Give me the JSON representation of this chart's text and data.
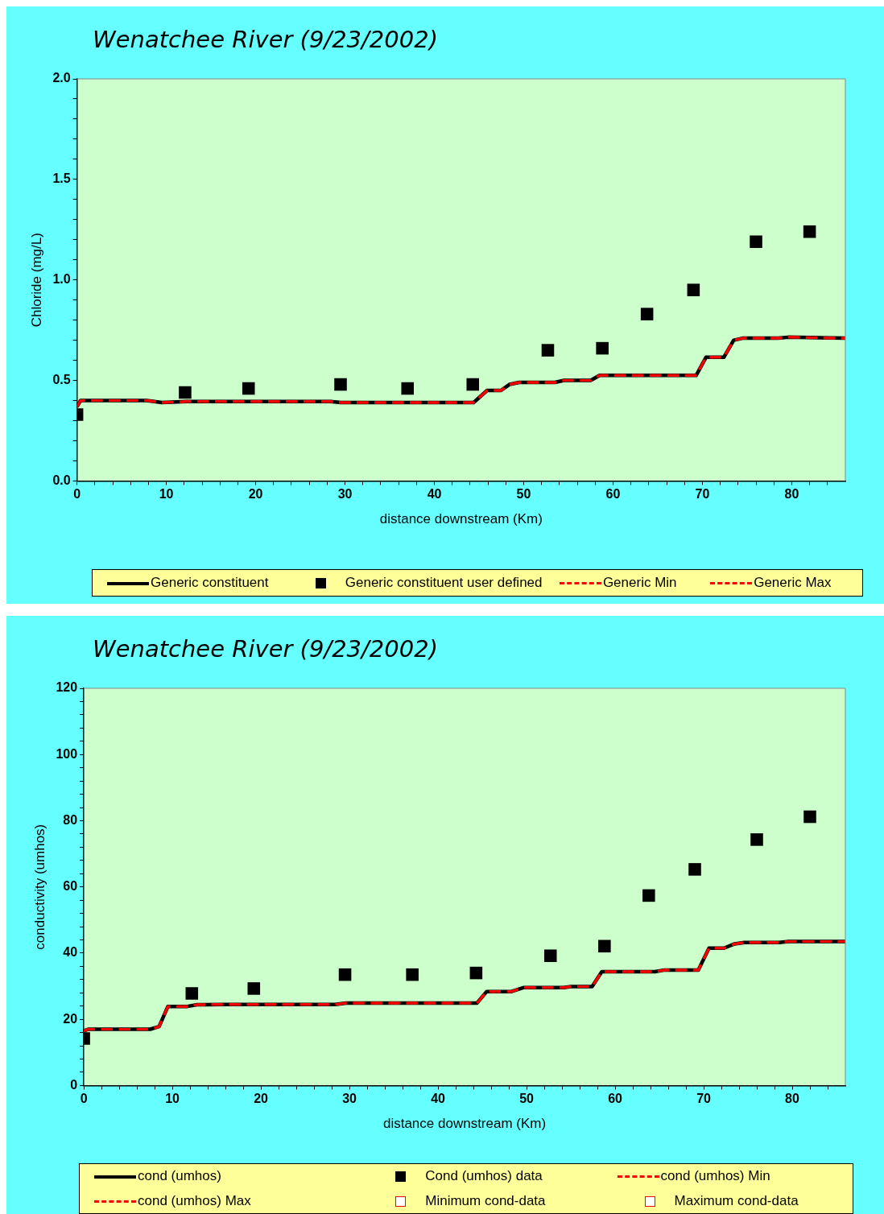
{
  "chart_data": [
    {
      "type": "line",
      "title": "Wenatchee River (9/23/2002)",
      "xlabel": "distance downstream (Km)",
      "ylabel": "Chloride (mg/L)",
      "xlim": [
        0,
        86
      ],
      "xticks": [
        0,
        {
          "value": 2,
          "label": null
        },
        {
          "value": 4,
          "label": null
        },
        {
          "value": 6,
          "label": null
        },
        {
          "value": 8,
          "label": null
        },
        10,
        {
          "value": 12,
          "label": null
        },
        {
          "value": 14,
          "label": null
        },
        {
          "value": 16,
          "label": null
        },
        {
          "value": 18,
          "label": null
        },
        20,
        {
          "value": 22,
          "label": null
        },
        {
          "value": 24,
          "label": null
        },
        {
          "value": 26,
          "label": null
        },
        {
          "value": 28,
          "label": null
        },
        30,
        {
          "value": 32,
          "label": null
        },
        {
          "value": 34,
          "label": null
        },
        {
          "value": 36,
          "label": null
        },
        {
          "value": 38,
          "label": null
        },
        40,
        {
          "value": 42,
          "label": null
        },
        {
          "value": 44,
          "label": null
        },
        {
          "value": 46,
          "label": null
        },
        {
          "value": 48,
          "label": null
        },
        50,
        {
          "value": 52,
          "label": null
        },
        {
          "value": 54,
          "label": null
        },
        {
          "value": 56,
          "label": null
        },
        {
          "value": 58,
          "label": null
        },
        60,
        {
          "value": 62,
          "label": null
        },
        {
          "value": 64,
          "label": null
        },
        {
          "value": 66,
          "label": null
        },
        {
          "value": 68,
          "label": null
        },
        70,
        {
          "value": 72,
          "label": null
        },
        {
          "value": 74,
          "label": null
        },
        {
          "value": 76,
          "label": null
        },
        {
          "value": 78,
          "label": null
        },
        80,
        {
          "value": 82,
          "label": null
        },
        {
          "value": 84,
          "label": null
        }
      ],
      "ylim": [
        0,
        2
      ],
      "yticks": [
        {
          "value": 0,
          "label": "0.0"
        },
        {
          "value": 0.1,
          "label": null
        },
        {
          "value": 0.2,
          "label": null
        },
        {
          "value": 0.3,
          "label": null
        },
        {
          "value": 0.4,
          "label": null
        },
        0.5,
        {
          "value": 0.6,
          "label": null
        },
        {
          "value": 0.7,
          "label": null
        },
        {
          "value": 0.8,
          "label": null
        },
        {
          "value": 0.9,
          "label": null
        },
        {
          "value": 1,
          "label": "1.0"
        },
        {
          "value": 1.1,
          "label": null
        },
        {
          "value": 1.2,
          "label": null
        },
        {
          "value": 1.3,
          "label": null
        },
        {
          "value": 1.4,
          "label": null
        },
        1.5,
        {
          "value": 1.6,
          "label": null
        },
        {
          "value": 1.7,
          "label": null
        },
        {
          "value": 1.8,
          "label": null
        },
        {
          "value": 1.9,
          "label": null
        },
        {
          "value": 2,
          "label": "2.0"
        }
      ],
      "grid": false,
      "legend": "bottom",
      "series": [
        {
          "name": "Generic constituent",
          "color": "#000000",
          "line_style": "solid",
          "marker": "none",
          "x": [
            0,
            0.4,
            7.8,
            9.5,
            12.3,
            28.4,
            29.5,
            44.4,
            45.9,
            47.45,
            48.4,
            49.5,
            53.5,
            54.5,
            57.5,
            58.5,
            69.3,
            70.4,
            72.4,
            73.5,
            74.5,
            78.5,
            79.6,
            86
          ],
          "values": [
            0.37,
            0.4,
            0.4,
            0.39,
            0.395,
            0.395,
            0.39,
            0.39,
            0.45,
            0.45,
            0.48,
            0.49,
            0.49,
            0.5,
            0.5,
            0.525,
            0.525,
            0.615,
            0.615,
            0.7,
            0.71,
            0.71,
            0.715,
            0.71
          ]
        },
        {
          "name": "Generic constituent user defined",
          "type": "scatter",
          "color": "#000000",
          "marker": "square",
          "x": [
            0,
            12.1,
            19.2,
            29.5,
            37,
            44.3,
            52.7,
            58.8,
            63.8,
            69,
            76,
            82
          ],
          "values": [
            0.33,
            0.44,
            0.46,
            0.48,
            0.46,
            0.48,
            0.65,
            0.66,
            0.83,
            0.95,
            1.19,
            1.24
          ]
        },
        {
          "name": "Generic Min",
          "color": "#ff0000",
          "line_style": "dashed",
          "marker": "none",
          "x": [
            0,
            0.4,
            7.8,
            9.5,
            12.3,
            28.4,
            29.5,
            44.4,
            45.9,
            47.45,
            48.4,
            49.5,
            53.5,
            54.5,
            57.5,
            58.5,
            69.3,
            70.4,
            72.4,
            73.5,
            74.5,
            78.5,
            79.6,
            86
          ],
          "values": [
            0.37,
            0.4,
            0.4,
            0.39,
            0.395,
            0.395,
            0.39,
            0.39,
            0.45,
            0.45,
            0.48,
            0.49,
            0.49,
            0.5,
            0.5,
            0.525,
            0.525,
            0.615,
            0.615,
            0.7,
            0.71,
            0.71,
            0.715,
            0.71
          ]
        },
        {
          "name": "Generic Max",
          "color": "#ff0000",
          "line_style": "dashed",
          "marker": "none",
          "x": [
            0,
            0.4,
            7.8,
            9.5,
            12.3,
            28.4,
            29.5,
            44.4,
            45.9,
            47.45,
            48.4,
            49.5,
            53.5,
            54.5,
            57.5,
            58.5,
            69.3,
            70.4,
            72.4,
            73.5,
            74.5,
            78.5,
            79.6,
            86
          ],
          "values": [
            0.37,
            0.4,
            0.4,
            0.39,
            0.395,
            0.395,
            0.39,
            0.39,
            0.45,
            0.45,
            0.48,
            0.49,
            0.49,
            0.5,
            0.5,
            0.525,
            0.525,
            0.615,
            0.615,
            0.7,
            0.71,
            0.71,
            0.715,
            0.71
          ]
        }
      ]
    },
    {
      "type": "line",
      "title": "Wenatchee River (9/23/2002)",
      "xlabel": "distance downstream (Km)",
      "ylabel": "conductivity (umhos)",
      "xlim": [
        0,
        86
      ],
      "xticks": [
        0,
        {
          "value": 2,
          "label": null
        },
        {
          "value": 4,
          "label": null
        },
        {
          "value": 6,
          "label": null
        },
        {
          "value": 8,
          "label": null
        },
        10,
        {
          "value": 12,
          "label": null
        },
        {
          "value": 14,
          "label": null
        },
        {
          "value": 16,
          "label": null
        },
        {
          "value": 18,
          "label": null
        },
        20,
        {
          "value": 22,
          "label": null
        },
        {
          "value": 24,
          "label": null
        },
        {
          "value": 26,
          "label": null
        },
        {
          "value": 28,
          "label": null
        },
        30,
        {
          "value": 32,
          "label": null
        },
        {
          "value": 34,
          "label": null
        },
        {
          "value": 36,
          "label": null
        },
        {
          "value": 38,
          "label": null
        },
        40,
        {
          "value": 42,
          "label": null
        },
        {
          "value": 44,
          "label": null
        },
        {
          "value": 46,
          "label": null
        },
        {
          "value": 48,
          "label": null
        },
        50,
        {
          "value": 52,
          "label": null
        },
        {
          "value": 54,
          "label": null
        },
        {
          "value": 56,
          "label": null
        },
        {
          "value": 58,
          "label": null
        },
        60,
        {
          "value": 62,
          "label": null
        },
        {
          "value": 64,
          "label": null
        },
        {
          "value": 66,
          "label": null
        },
        {
          "value": 68,
          "label": null
        },
        70,
        {
          "value": 72,
          "label": null
        },
        {
          "value": 74,
          "label": null
        },
        {
          "value": 76,
          "label": null
        },
        {
          "value": 78,
          "label": null
        },
        80,
        {
          "value": 82,
          "label": null
        },
        {
          "value": 84,
          "label": null
        }
      ],
      "ylim": [
        0,
        120
      ],
      "yticks": [
        0,
        {
          "value": 4,
          "label": null
        },
        {
          "value": 8,
          "label": null
        },
        {
          "value": 12,
          "label": null
        },
        {
          "value": 16,
          "label": null
        },
        20,
        {
          "value": 24,
          "label": null
        },
        {
          "value": 28,
          "label": null
        },
        {
          "value": 32,
          "label": null
        },
        {
          "value": 36,
          "label": null
        },
        40,
        {
          "value": 44,
          "label": null
        },
        {
          "value": 48,
          "label": null
        },
        {
          "value": 52,
          "label": null
        },
        {
          "value": 56,
          "label": null
        },
        60,
        {
          "value": 64,
          "label": null
        },
        {
          "value": 68,
          "label": null
        },
        {
          "value": 72,
          "label": null
        },
        {
          "value": 76,
          "label": null
        },
        80,
        {
          "value": 84,
          "label": null
        },
        {
          "value": 88,
          "label": null
        },
        {
          "value": 92,
          "label": null
        },
        {
          "value": 96,
          "label": null
        },
        100,
        {
          "value": 104,
          "label": null
        },
        {
          "value": 108,
          "label": null
        },
        {
          "value": 112,
          "label": null
        },
        {
          "value": 116,
          "label": null
        },
        120
      ],
      "grid": false,
      "legend": "bottom",
      "series": [
        {
          "name": "cond (umhos)",
          "color": "#000000",
          "line_style": "solid",
          "marker": "none",
          "x": [
            0,
            0.5,
            7.5,
            8.5,
            9.5,
            11.7,
            12.8,
            15.9,
            28.4,
            29.6,
            44.4,
            45.5,
            48.3,
            49.7,
            54.2,
            55,
            57.4,
            58.5,
            64.5,
            65.6,
            69.4,
            70.6,
            72.3,
            73.5,
            74.6,
            78.5,
            79.6,
            86
          ],
          "values": [
            16.5,
            17,
            17,
            17.8,
            23.9,
            23.9,
            24.4,
            24.5,
            24.5,
            24.9,
            24.9,
            28.4,
            28.4,
            29.6,
            29.6,
            29.9,
            29.9,
            34.4,
            34.4,
            34.9,
            34.9,
            41.5,
            41.5,
            42.8,
            43.2,
            43.2,
            43.5,
            43.5
          ]
        },
        {
          "name": "Cond (umhos) data",
          "type": "scatter",
          "color": "#000000",
          "marker": "square",
          "x": [
            0,
            12.2,
            19.2,
            29.5,
            37.1,
            44.3,
            52.7,
            58.8,
            63.8,
            69,
            76,
            82
          ],
          "values": [
            14.2,
            27.8,
            29.3,
            33.5,
            33.5,
            34,
            39.2,
            42.1,
            57.4,
            65.3,
            74.3,
            81.2
          ]
        },
        {
          "name": "cond (umhos) Min",
          "color": "#ff0000",
          "line_style": "dashed",
          "marker": "none",
          "x": [
            0,
            0.5,
            7.5,
            8.5,
            9.5,
            11.7,
            12.8,
            15.9,
            28.4,
            29.6,
            44.4,
            45.5,
            48.3,
            49.7,
            54.2,
            55,
            57.4,
            58.5,
            64.5,
            65.6,
            69.4,
            70.6,
            72.3,
            73.5,
            74.6,
            78.5,
            79.6,
            86
          ],
          "values": [
            16.5,
            17,
            17,
            17.8,
            23.9,
            23.9,
            24.4,
            24.5,
            24.5,
            24.9,
            24.9,
            28.4,
            28.4,
            29.6,
            29.6,
            29.9,
            29.9,
            34.4,
            34.4,
            34.9,
            34.9,
            41.5,
            41.5,
            42.8,
            43.2,
            43.2,
            43.5,
            43.5
          ]
        },
        {
          "name": "cond (umhos) Max",
          "color": "#ff0000",
          "line_style": "dashed",
          "marker": "none",
          "x": [
            0,
            0.5,
            7.5,
            8.5,
            9.5,
            11.7,
            12.8,
            15.9,
            28.4,
            29.6,
            44.4,
            45.5,
            48.3,
            49.7,
            54.2,
            55,
            57.4,
            58.5,
            64.5,
            65.6,
            69.4,
            70.6,
            72.3,
            73.5,
            74.6,
            78.5,
            79.6,
            86
          ],
          "values": [
            16.5,
            17,
            17,
            17.8,
            23.9,
            23.9,
            24.4,
            24.5,
            24.5,
            24.9,
            24.9,
            28.4,
            28.4,
            29.6,
            29.6,
            29.9,
            29.9,
            34.4,
            34.4,
            34.9,
            34.9,
            41.5,
            41.5,
            42.8,
            43.2,
            43.2,
            43.5,
            43.5
          ]
        },
        {
          "name": "Minimum cond-data",
          "type": "scatter",
          "color": "#ff0000",
          "marker": "square"
        },
        {
          "name": "Maximum cond-data",
          "type": "scatter",
          "color": "#ff0000",
          "marker": "square"
        }
      ]
    }
  ]
}
